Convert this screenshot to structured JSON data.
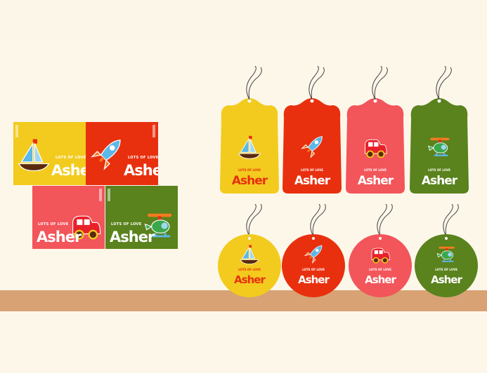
{
  "text": {
    "tagline": "LOTS OF LOVE",
    "name": "Asher"
  },
  "colors": {
    "yellow": "#f2cb1e",
    "red": "#e8300f",
    "pink": "#f2555a",
    "green": "#5a821d",
    "shelf": "#d8a274",
    "background": "#fdf7ea"
  },
  "items": [
    {
      "color": "#f2cb1e",
      "icon": "sailboat-icon",
      "tag_text": "#e8300f"
    },
    {
      "color": "#e8300f",
      "icon": "rocket-icon",
      "tag_text": "#ffffff"
    },
    {
      "color": "#f2555a",
      "icon": "car-icon",
      "tag_text": "#ffffff"
    },
    {
      "color": "#5a821d",
      "icon": "helicopter-icon",
      "tag_text": "#ffffff"
    }
  ]
}
